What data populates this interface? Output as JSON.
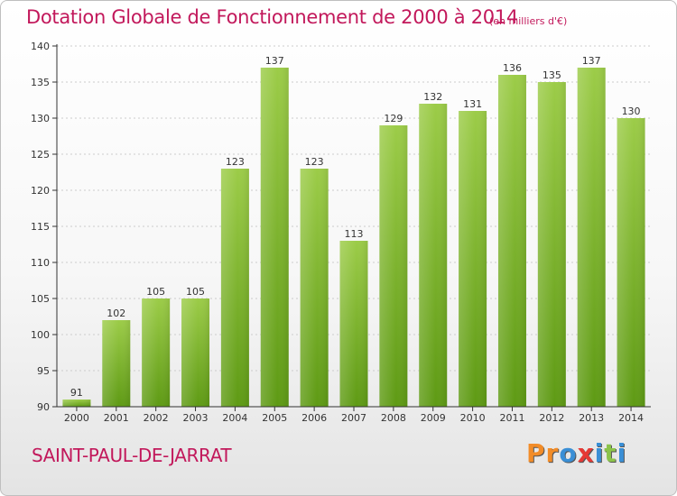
{
  "header": {
    "title": "Dotation Globale de Fonctionnement de 2000 à 2014",
    "subtitle": "(en milliers d'€)"
  },
  "footer": {
    "place": "SAINT-PAUL-DE-JARRAT",
    "logo": "Proxiti",
    "logo_colors": [
      "#f28c28",
      "#f28c28",
      "#3a8fd6",
      "#e53935",
      "#3a8fd6",
      "#8bc34a",
      "#3a8fd6"
    ]
  },
  "colors": {
    "bar_top": "#9ccc48",
    "bar_bottom": "#5e9a14",
    "title": "#c2185b",
    "axis": "#333333",
    "grid": "#cccccc"
  },
  "chart_data": {
    "type": "bar",
    "title": "Dotation Globale de Fonctionnement de 2000 à 2014",
    "subtitle": "(en milliers d'€)",
    "categories": [
      "2000",
      "2001",
      "2002",
      "2003",
      "2004",
      "2005",
      "2006",
      "2007",
      "2008",
      "2009",
      "2010",
      "2011",
      "2012",
      "2013",
      "2014"
    ],
    "values": [
      91,
      102,
      105,
      105,
      123,
      137,
      123,
      113,
      129,
      132,
      131,
      136,
      135,
      137,
      130
    ],
    "ylim": [
      90,
      140
    ],
    "yticks": [
      90,
      95,
      100,
      105,
      110,
      115,
      120,
      125,
      130,
      135,
      140
    ],
    "grid": true,
    "legend": "none"
  }
}
